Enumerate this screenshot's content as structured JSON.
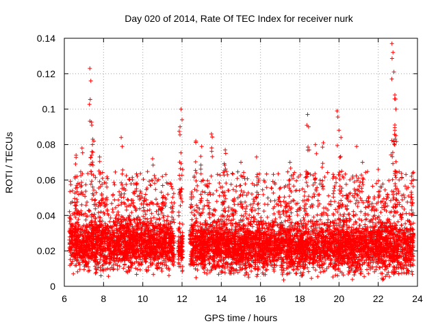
{
  "chart_data": {
    "type": "scatter",
    "title": "Day 020 of 2014, Rate Of TEC Index for receiver nurk",
    "xlabel": "GPS time / hours",
    "ylabel": "ROTI / TECUs",
    "xlim": [
      6,
      24
    ],
    "ylim": [
      0,
      0.14
    ],
    "xticks": [
      "6",
      "8",
      "10",
      "12",
      "14",
      "16",
      "18",
      "20",
      "22",
      "24"
    ],
    "yticks": [
      "0",
      "0.02",
      "0.04",
      "0.06",
      "0.08",
      "0.1",
      "0.12",
      "0.14"
    ],
    "grid": true,
    "marker": "plus",
    "color": "#ff0000",
    "series": [
      {
        "name": "ROTI",
        "segments": [
          {
            "x": [
              6.25,
              11.6
            ],
            "ymin": 0.004,
            "base": 0.02,
            "spread": 0.04
          },
          {
            "x": [
              11.8,
              12.05
            ],
            "ymin": 0.006,
            "base": 0.025,
            "spread": 0.03
          },
          {
            "x": [
              12.4,
              23.8
            ],
            "ymin": 0.002,
            "base": 0.02,
            "spread": 0.04
          }
        ],
        "peaks": [
          {
            "x": 6.6,
            "y": 0.074
          },
          {
            "x": 6.9,
            "y": 0.078
          },
          {
            "x": 7.3,
            "y": 0.123
          },
          {
            "x": 7.35,
            "y": 0.116
          },
          {
            "x": 7.4,
            "y": 0.091
          },
          {
            "x": 7.45,
            "y": 0.083
          },
          {
            "x": 7.8,
            "y": 0.073
          },
          {
            "x": 8.9,
            "y": 0.084
          },
          {
            "x": 8.95,
            "y": 0.079
          },
          {
            "x": 10.5,
            "y": 0.072
          },
          {
            "x": 11.0,
            "y": 0.062
          },
          {
            "x": 11.95,
            "y": 0.1
          },
          {
            "x": 11.9,
            "y": 0.09
          },
          {
            "x": 12.0,
            "y": 0.094
          },
          {
            "x": 12.7,
            "y": 0.082
          },
          {
            "x": 13.0,
            "y": 0.079
          },
          {
            "x": 13.5,
            "y": 0.086
          },
          {
            "x": 14.2,
            "y": 0.077
          },
          {
            "x": 15.0,
            "y": 0.07
          },
          {
            "x": 15.8,
            "y": 0.073
          },
          {
            "x": 17.5,
            "y": 0.07
          },
          {
            "x": 18.4,
            "y": 0.097
          },
          {
            "x": 18.45,
            "y": 0.09
          },
          {
            "x": 18.8,
            "y": 0.08
          },
          {
            "x": 19.2,
            "y": 0.081
          },
          {
            "x": 19.9,
            "y": 0.099
          },
          {
            "x": 20.0,
            "y": 0.088
          },
          {
            "x": 20.1,
            "y": 0.084
          },
          {
            "x": 20.9,
            "y": 0.079
          },
          {
            "x": 21.2,
            "y": 0.07
          },
          {
            "x": 22.0,
            "y": 0.066
          },
          {
            "x": 22.7,
            "y": 0.137
          },
          {
            "x": 22.75,
            "y": 0.132
          },
          {
            "x": 22.8,
            "y": 0.121
          },
          {
            "x": 22.85,
            "y": 0.108
          },
          {
            "x": 22.9,
            "y": 0.1
          },
          {
            "x": 22.85,
            "y": 0.088
          },
          {
            "x": 22.8,
            "y": 0.082
          },
          {
            "x": 23.7,
            "y": 0.052
          }
        ]
      }
    ]
  }
}
